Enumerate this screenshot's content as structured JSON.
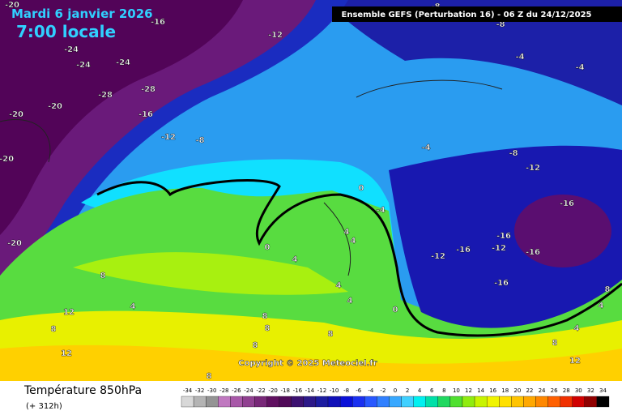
{
  "header": {
    "date": "Mardi 6 janvier 2026",
    "time": "7:00 locale",
    "run": "Ensemble GEFS  (Perturbation 16)  - 06 Z du 24/12/2025"
  },
  "copyright": "Copyright © 2025 Meteociel.fr",
  "footer": {
    "title": "Température 850hPa",
    "lead": "(+ 312h)"
  },
  "legend": {
    "ticks": [
      -34,
      -32,
      -30,
      -28,
      -26,
      -24,
      -22,
      -20,
      -18,
      -16,
      -14,
      -12,
      -10,
      -8,
      -6,
      -4,
      -2,
      0,
      2,
      4,
      6,
      8,
      10,
      12,
      14,
      16,
      18,
      20,
      22,
      24,
      26,
      28,
      30,
      32,
      34
    ],
    "colors": [
      "#d8d8d8",
      "#b4b4b4",
      "#949494",
      "#c078c0",
      "#a858a8",
      "#904090",
      "#782878",
      "#601060",
      "#500a58",
      "#3c1070",
      "#2c1888",
      "#1c1ca0",
      "#1010b8",
      "#0a10d8",
      "#1a30f0",
      "#2858ff",
      "#3080ff",
      "#38a8ff",
      "#40d0ff",
      "#00f0f0",
      "#00e0a8",
      "#20d860",
      "#50e030",
      "#90ec10",
      "#c8f400",
      "#f0f400",
      "#ffe000",
      "#ffc400",
      "#ffa800",
      "#ff8800",
      "#ff6000",
      "#f03000",
      "#d00000",
      "#900000",
      "#000000"
    ]
  },
  "map": {
    "labels": [
      "-20",
      "-16",
      "-12",
      "-24",
      "-24",
      "-24",
      "-28",
      "-28",
      "-20",
      "-16",
      "-20",
      "-12",
      "-8",
      "-20",
      "-20",
      "-8",
      "-8",
      "-4",
      "-4",
      "-4",
      "-8",
      "-12",
      "-16",
      "-16",
      "-16",
      "-12",
      "-16",
      "-12",
      "-16",
      "-4",
      "0",
      "0",
      "4",
      "4",
      "4",
      "4",
      "4",
      "0",
      "8",
      "4",
      "12",
      "8",
      "12",
      "8",
      "8",
      "8",
      "8",
      "8",
      "8",
      "4",
      "4",
      "12",
      "8"
    ]
  }
}
